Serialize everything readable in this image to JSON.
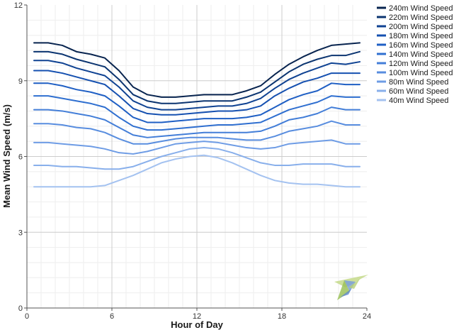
{
  "chart_data": {
    "type": "line",
    "title": "",
    "xlabel": "Hour of Day",
    "ylabel": "Mean Wind Speed (m/s)",
    "xlim": [
      0,
      24
    ],
    "ylim": [
      0,
      12
    ],
    "x_ticks": [
      0,
      6,
      12,
      18,
      24
    ],
    "y_ticks": [
      0,
      3,
      6,
      9,
      12
    ],
    "grid": true,
    "legend_position": "top-right-outside",
    "x": [
      0.5,
      1.5,
      2.5,
      3.5,
      4.5,
      5.5,
      6.5,
      7.5,
      8.5,
      9.5,
      10.5,
      11.5,
      12.5,
      13.5,
      14.5,
      15.5,
      16.5,
      17.5,
      18.5,
      19.5,
      20.5,
      21.5,
      22.5,
      23.5
    ],
    "series": [
      {
        "name": "240m Wind Speed",
        "color": "#08244f",
        "values": [
          10.5,
          10.5,
          10.4,
          10.15,
          10.05,
          9.9,
          9.4,
          8.75,
          8.45,
          8.35,
          8.35,
          8.4,
          8.45,
          8.45,
          8.45,
          8.6,
          8.8,
          9.25,
          9.65,
          9.95,
          10.2,
          10.4,
          10.45,
          10.5
        ]
      },
      {
        "name": "220m Wind Speed",
        "color": "#0b3470",
        "values": [
          10.15,
          10.15,
          10.05,
          9.85,
          9.7,
          9.55,
          9.05,
          8.45,
          8.2,
          8.1,
          8.1,
          8.15,
          8.2,
          8.2,
          8.2,
          8.35,
          8.55,
          8.95,
          9.35,
          9.65,
          9.85,
          10.0,
          10.0,
          10.15
        ]
      },
      {
        "name": "200m Wind Speed",
        "color": "#0f4292",
        "values": [
          9.8,
          9.8,
          9.7,
          9.5,
          9.35,
          9.2,
          8.75,
          8.2,
          7.95,
          7.85,
          7.85,
          7.9,
          7.95,
          8.0,
          8.0,
          8.1,
          8.3,
          8.7,
          9.05,
          9.3,
          9.5,
          9.7,
          9.65,
          9.75
        ]
      },
      {
        "name": "180m Wind Speed",
        "color": "#1550b0",
        "values": [
          9.4,
          9.4,
          9.3,
          9.15,
          9.0,
          8.85,
          8.4,
          7.9,
          7.7,
          7.65,
          7.65,
          7.7,
          7.75,
          7.8,
          7.8,
          7.85,
          8.0,
          8.4,
          8.7,
          8.95,
          9.1,
          9.3,
          9.3,
          9.3
        ]
      },
      {
        "name": "160m Wind Speed",
        "color": "#1f5fc4",
        "values": [
          8.9,
          8.9,
          8.8,
          8.65,
          8.55,
          8.4,
          8.0,
          7.55,
          7.35,
          7.35,
          7.4,
          7.45,
          7.5,
          7.5,
          7.5,
          7.55,
          7.65,
          7.95,
          8.25,
          8.45,
          8.6,
          8.9,
          8.85,
          8.85
        ]
      },
      {
        "name": "140m Wind Speed",
        "color": "#2f6fd0",
        "values": [
          8.4,
          8.4,
          8.3,
          8.2,
          8.1,
          7.95,
          7.55,
          7.2,
          7.05,
          7.05,
          7.1,
          7.15,
          7.2,
          7.25,
          7.25,
          7.3,
          7.35,
          7.6,
          7.85,
          8.0,
          8.15,
          8.4,
          8.35,
          8.35
        ]
      },
      {
        "name": "120m Wind Speed",
        "color": "#437ed8",
        "values": [
          7.85,
          7.85,
          7.8,
          7.7,
          7.6,
          7.45,
          7.15,
          6.85,
          6.75,
          6.8,
          6.85,
          6.9,
          6.95,
          6.95,
          6.95,
          6.95,
          7.0,
          7.2,
          7.45,
          7.55,
          7.7,
          7.95,
          7.85,
          7.85
        ]
      },
      {
        "name": "100m Wind Speed",
        "color": "#588ddf",
        "values": [
          7.3,
          7.3,
          7.25,
          7.15,
          7.1,
          6.95,
          6.7,
          6.5,
          6.5,
          6.6,
          6.7,
          6.75,
          6.75,
          6.75,
          6.7,
          6.65,
          6.65,
          6.8,
          7.0,
          7.1,
          7.2,
          7.4,
          7.25,
          7.25
        ]
      },
      {
        "name": "80m Wind Speed",
        "color": "#6e9ce5",
        "values": [
          6.55,
          6.55,
          6.5,
          6.45,
          6.4,
          6.3,
          6.15,
          6.1,
          6.2,
          6.35,
          6.5,
          6.55,
          6.6,
          6.55,
          6.45,
          6.35,
          6.3,
          6.35,
          6.5,
          6.55,
          6.6,
          6.65,
          6.5,
          6.5
        ]
      },
      {
        "name": "60m Wind Speed",
        "color": "#88afeb",
        "values": [
          5.65,
          5.65,
          5.6,
          5.6,
          5.55,
          5.5,
          5.5,
          5.6,
          5.8,
          6.0,
          6.15,
          6.3,
          6.35,
          6.3,
          6.15,
          5.95,
          5.75,
          5.65,
          5.65,
          5.7,
          5.7,
          5.7,
          5.6,
          5.6
        ]
      },
      {
        "name": "40m Wind Speed",
        "color": "#a4c2f0",
        "values": [
          4.8,
          4.8,
          4.8,
          4.8,
          4.8,
          4.85,
          5.05,
          5.25,
          5.5,
          5.75,
          5.9,
          6.0,
          6.05,
          5.95,
          5.75,
          5.5,
          5.25,
          5.05,
          4.95,
          4.9,
          4.9,
          4.85,
          4.8,
          4.8
        ]
      }
    ]
  }
}
